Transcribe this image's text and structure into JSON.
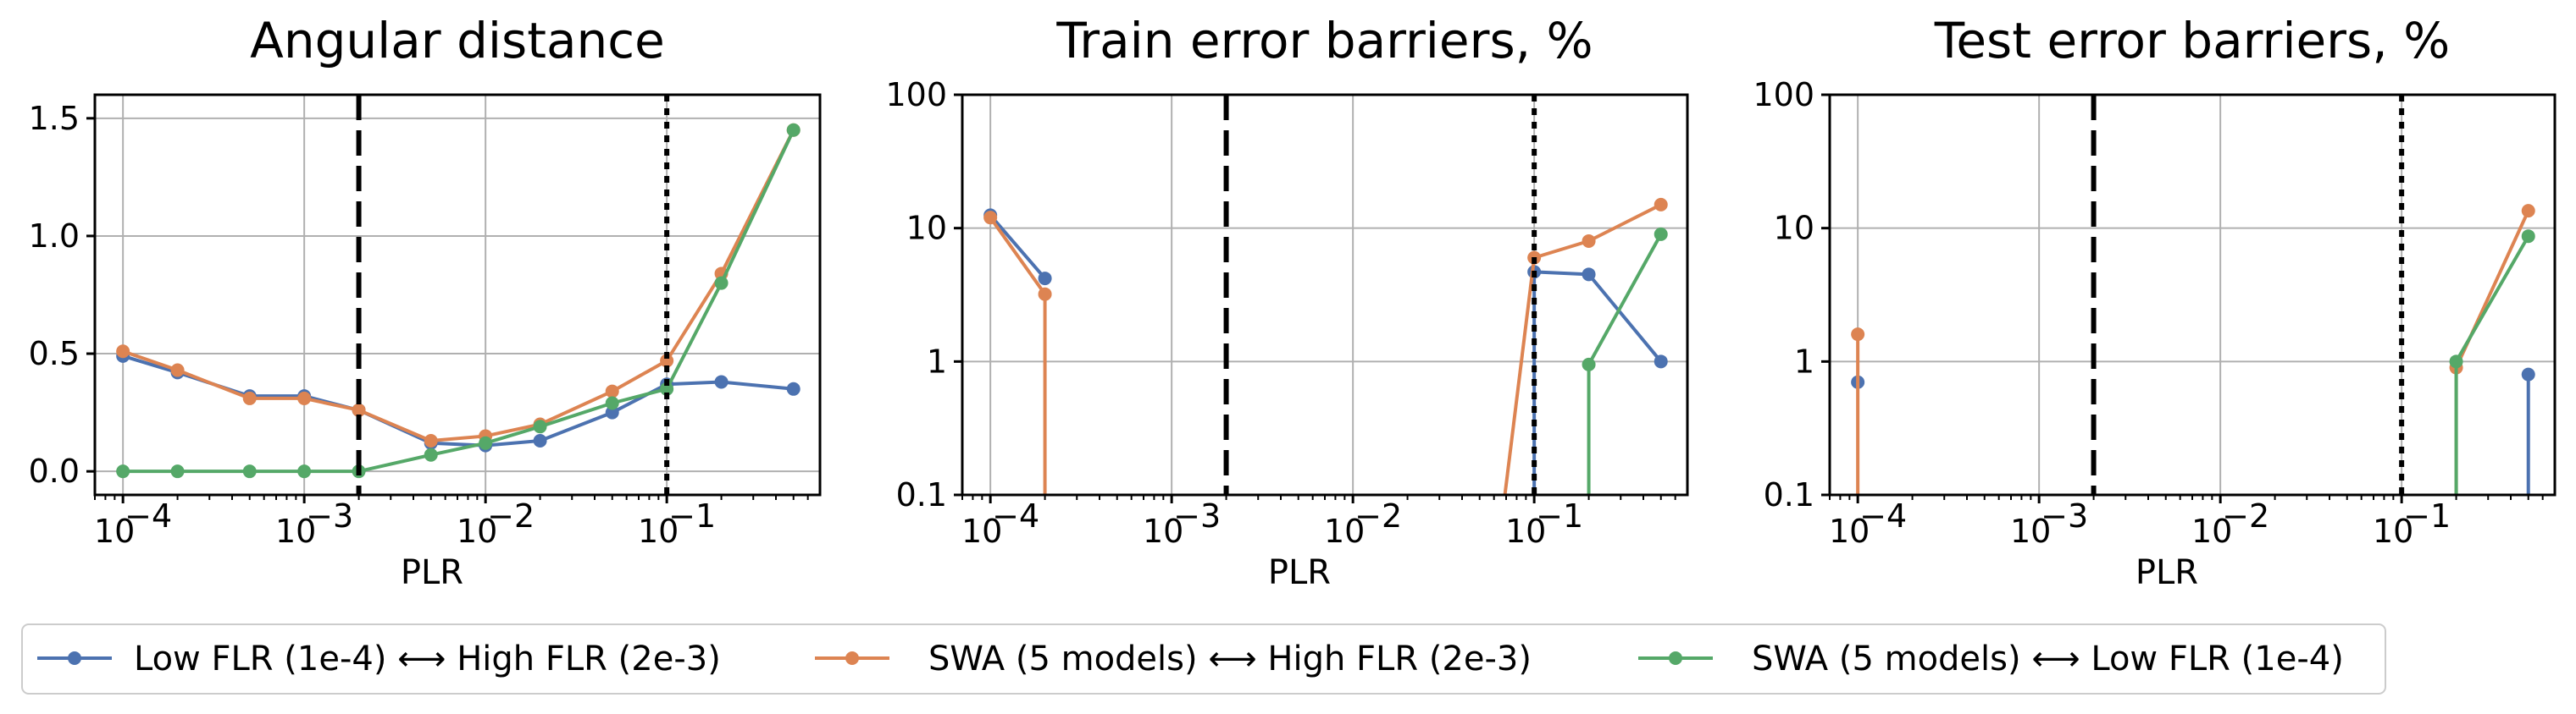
{
  "figure": {
    "legend": {
      "entries": [
        {
          "label": "Low FLR (1e-4) ⟷ High FLR (2e-3)",
          "color": "#4c72b0"
        },
        {
          "label": "SWA (5 models) ⟷ High FLR (2e-3)",
          "color": "#dd8452"
        },
        {
          "label": "SWA (5 models) ⟷ Low FLR (1e-4)",
          "color": "#55a868"
        }
      ]
    }
  },
  "chart_data": [
    {
      "type": "line",
      "title": "Angular distance",
      "xlabel": "PLR",
      "ylabel": "",
      "xscale": "log",
      "yscale": "linear",
      "xlim": [
        7e-05,
        0.7
      ],
      "ylim": [
        -0.1,
        1.6
      ],
      "yticks": [
        0,
        0.5,
        1,
        1.5
      ],
      "ytick_labels": [
        "0.0",
        "0.5",
        "1.0",
        "1.5"
      ],
      "xticks": [
        0.0001,
        0.001,
        0.01,
        0.1
      ],
      "xtick_labels": [
        [
          "10",
          "−4"
        ],
        [
          "10",
          "−3"
        ],
        [
          "10",
          "−2"
        ],
        [
          "10",
          "−1"
        ]
      ],
      "grid": true,
      "vlines": [
        {
          "x": 0.002,
          "style": "dashed"
        },
        {
          "x": 0.1,
          "style": "dotted"
        }
      ],
      "series": [
        {
          "name": "Low FLR (1e-4) ⟷ High FLR (2e-3)",
          "color": "#4c72b0",
          "x": [
            0.0001,
            0.0002,
            0.0005,
            0.001,
            0.002,
            0.005,
            0.01,
            0.02,
            0.05,
            0.1,
            0.2,
            0.5
          ],
          "y": [
            0.49,
            0.42,
            0.32,
            0.32,
            0.26,
            0.12,
            0.11,
            0.13,
            0.25,
            0.37,
            0.38,
            0.35
          ]
        },
        {
          "name": "SWA (5 models) ⟷ High FLR (2e-3)",
          "color": "#dd8452",
          "x": [
            0.0001,
            0.0002,
            0.0005,
            0.001,
            0.002,
            0.005,
            0.01,
            0.02,
            0.05,
            0.1,
            0.2,
            0.5
          ],
          "y": [
            0.51,
            0.43,
            0.31,
            0.31,
            0.26,
            0.13,
            0.15,
            0.2,
            0.34,
            0.47,
            0.84,
            1.45
          ]
        },
        {
          "name": "SWA (5 models) ⟷ Low FLR (1e-4)",
          "color": "#55a868",
          "x": [
            0.0001,
            0.0002,
            0.0005,
            0.001,
            0.002,
            0.005,
            0.01,
            0.02,
            0.05,
            0.1,
            0.2,
            0.5
          ],
          "y": [
            0.0,
            0.0,
            0.0,
            0.0,
            0.0,
            0.07,
            0.12,
            0.19,
            0.29,
            0.35,
            0.8,
            1.45
          ]
        }
      ]
    },
    {
      "type": "line",
      "title": "Train error barriers, %",
      "xlabel": "PLR",
      "ylabel": "",
      "xscale": "log",
      "yscale": "log",
      "xlim": [
        7e-05,
        0.7
      ],
      "ylim": [
        0.1,
        100
      ],
      "yticks": [
        0.1,
        1,
        10,
        100
      ],
      "ytick_labels": [
        "0.1",
        "1",
        "10",
        "100"
      ],
      "xticks": [
        0.0001,
        0.001,
        0.01,
        0.1
      ],
      "xtick_labels": [
        [
          "10",
          "−4"
        ],
        [
          "10",
          "−3"
        ],
        [
          "10",
          "−2"
        ],
        [
          "10",
          "−1"
        ]
      ],
      "grid": true,
      "vlines": [
        {
          "x": 0.002,
          "style": "dashed"
        },
        {
          "x": 0.1,
          "style": "dotted"
        }
      ],
      "series": [
        {
          "name": "Low FLR (1e-4) ⟷ High FLR (2e-3)",
          "color": "#4c72b0",
          "x": [
            0.0001,
            0.0002,
            0.1,
            0.2,
            0.5
          ],
          "y": [
            12.5,
            4.2,
            4.7,
            4.5,
            1.0
          ],
          "drop_to_bottom_from": [
            {
              "x": 0.1,
              "y": 4.7
            }
          ]
        },
        {
          "name": "SWA (5 models) ⟷ High FLR (2e-3)",
          "color": "#dd8452",
          "x": [
            0.0001,
            0.0002,
            0.1,
            0.2,
            0.5
          ],
          "y": [
            12.0,
            3.2,
            6.0,
            8.0,
            15.0
          ],
          "drop_to_bottom_from": [
            {
              "x": 0.0002,
              "y": 3.2
            }
          ],
          "rise_from_bottom": [
            {
              "x_bottom": 0.068,
              "x": 0.1,
              "y": 6.0
            }
          ]
        },
        {
          "name": "SWA (5 models) ⟷ Low FLR (1e-4)",
          "color": "#55a868",
          "x": [
            0.2,
            0.5
          ],
          "y": [
            0.95,
            9.0
          ],
          "drop_to_bottom_from": [
            {
              "x": 0.2,
              "y": 0.95
            }
          ]
        }
      ]
    },
    {
      "type": "line",
      "title": "Test error barriers, %",
      "xlabel": "PLR",
      "ylabel": "",
      "xscale": "log",
      "yscale": "log",
      "xlim": [
        7e-05,
        0.7
      ],
      "ylim": [
        0.1,
        100
      ],
      "yticks": [
        0.1,
        1,
        10,
        100
      ],
      "ytick_labels": [
        "0.1",
        "1",
        "10",
        "100"
      ],
      "xticks": [
        0.0001,
        0.001,
        0.01,
        0.1
      ],
      "xtick_labels": [
        [
          "10",
          "−4"
        ],
        [
          "10",
          "−3"
        ],
        [
          "10",
          "−2"
        ],
        [
          "10",
          "−1"
        ]
      ],
      "grid": true,
      "vlines": [
        {
          "x": 0.002,
          "style": "dashed"
        },
        {
          "x": 0.1,
          "style": "dotted"
        }
      ],
      "series": [
        {
          "name": "Low FLR (1e-4) ⟷ High FLR (2e-3)",
          "color": "#4c72b0",
          "x": [
            0.0001,
            0.5
          ],
          "y": [
            0.7,
            0.8
          ],
          "drop_to_bottom_from": [
            {
              "x": 0.5,
              "y": 0.8
            }
          ]
        },
        {
          "name": "SWA (5 models) ⟷ High FLR (2e-3)",
          "color": "#dd8452",
          "x": [
            0.0001,
            0.2,
            0.5
          ],
          "y": [
            1.6,
            0.9,
            13.5
          ],
          "drop_to_bottom_from": [
            {
              "x": 0.0001,
              "y": 1.6
            },
            {
              "x": 0.2,
              "y": 0.9
            }
          ],
          "segments": [
            [
              0.2,
              0.5
            ]
          ]
        },
        {
          "name": "SWA (5 models) ⟷ Low FLR (1e-4)",
          "color": "#55a868",
          "x": [
            0.2,
            0.5
          ],
          "y": [
            1.0,
            8.7
          ],
          "drop_to_bottom_from": [
            {
              "x": 0.2,
              "y": 1.0
            }
          ]
        }
      ]
    }
  ]
}
